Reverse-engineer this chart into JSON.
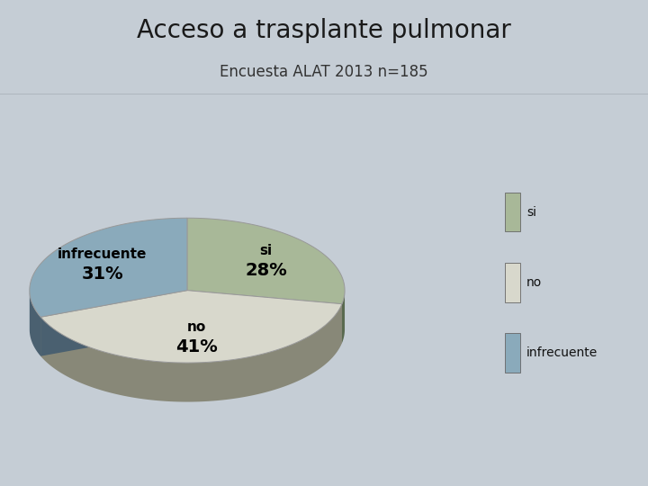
{
  "title": "Acceso a trasplante pulmonar",
  "subtitle": "Encuesta ALAT 2013 n=185",
  "labels": [
    "si",
    "no",
    "infrecuente"
  ],
  "values": [
    28,
    41,
    31
  ],
  "colors_top": [
    "#a8b898",
    "#d8d8cc",
    "#8aaabb"
  ],
  "colors_side": [
    "#5a6a50",
    "#888878",
    "#4a6070"
  ],
  "title_fontsize": 20,
  "subtitle_fontsize": 12,
  "label_fontsize": 11,
  "pct_fontsize": 14,
  "bg_color": "#c5cdd5",
  "chart_bg": "#d5dbe1",
  "header_bg": "#cbD2d8",
  "legend_marker_colors": [
    "#a8b898",
    "#d8d8cc",
    "#8aaabb"
  ]
}
